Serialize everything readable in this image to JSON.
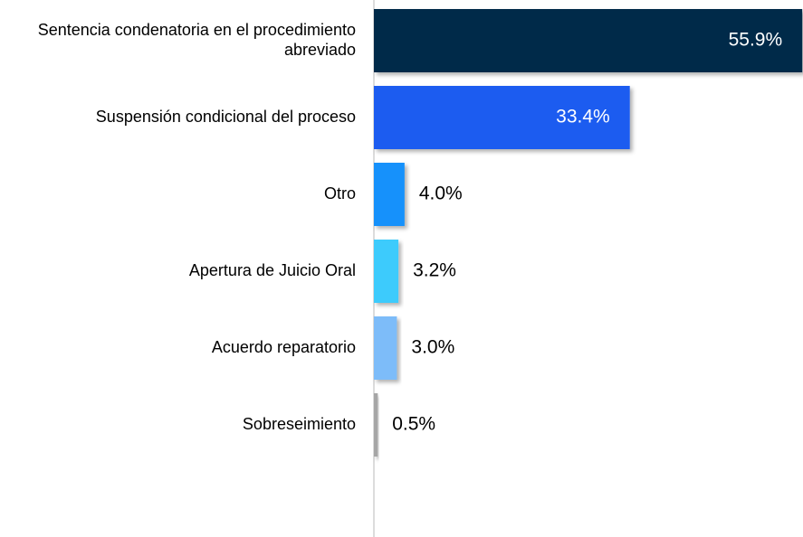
{
  "chart_data": {
    "type": "bar",
    "orientation": "horizontal",
    "categories": [
      "Sentencia condenatoria en el procedimiento abreviado",
      "Suspensión condicional del proceso",
      "Otro",
      "Apertura de Juicio Oral",
      "Acuerdo reparatorio",
      "Sobreseimiento"
    ],
    "values": [
      55.9,
      33.4,
      4.0,
      3.2,
      3.0,
      0.5
    ],
    "value_labels": [
      "55.9%",
      "33.4%",
      "4.0%",
      "3.2%",
      "3.0%",
      "0.5%"
    ],
    "colors": [
      "#022b4a",
      "#1a5cf0",
      "#1591fb",
      "#3ccbfc",
      "#7dbcf9",
      "#a6a6a6"
    ],
    "xlim": [
      0,
      56
    ]
  }
}
